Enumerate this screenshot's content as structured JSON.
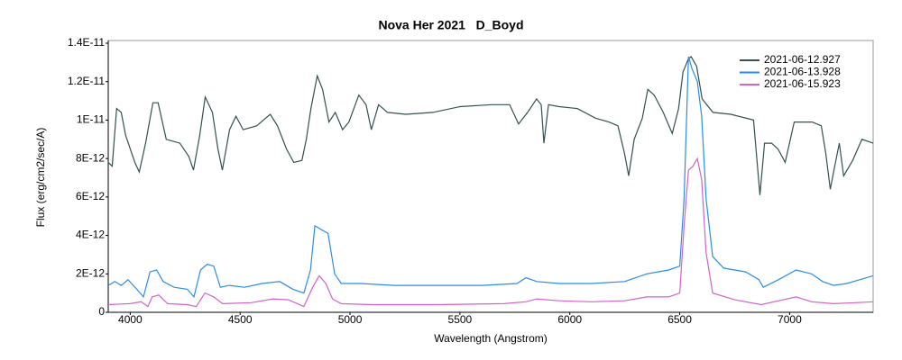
{
  "chart_data": {
    "type": "line",
    "title": "Nova Her 2021   D_Boyd",
    "x_label": "Wavelength (Angstrom)",
    "y_label": "Flux (erg/cm2/sec/A)",
    "xlim": [
      3900,
      7380
    ],
    "xticks": [
      4000,
      4500,
      5000,
      5500,
      6000,
      6500,
      7000
    ],
    "ylim": [
      0,
      1.4e-11
    ],
    "yticks": [
      0,
      {
        "value": 2e-12,
        "label": "2E-12"
      },
      {
        "value": 4e-12,
        "label": "4E-12"
      },
      {
        "value": 6e-12,
        "label": "6E-12"
      },
      {
        "value": 8e-12,
        "label": "8E-12"
      },
      {
        "value": 1e-11,
        "label": "1E-11"
      },
      {
        "value": 1.2e-11,
        "label": "1.2E-11"
      },
      {
        "value": 1.4e-11,
        "label": "1.4E-11"
      }
    ],
    "legend": "upper right",
    "series": [
      {
        "name": "2021-06-12.927",
        "color": "#34504f",
        "x": [
          3900,
          3918,
          3938,
          3959,
          3979,
          4021,
          4041,
          4070,
          4103,
          4127,
          4164,
          4226,
          4267,
          4288,
          4316,
          4341,
          4374,
          4399,
          4419,
          4452,
          4481,
          4514,
          4575,
          4637,
          4670,
          4711,
          4744,
          4781,
          4801,
          4822,
          4851,
          4875,
          4904,
          4933,
          4966,
          4995,
          5040,
          5073,
          5097,
          5130,
          5171,
          5254,
          5377,
          5500,
          5644,
          5726,
          5767,
          5808,
          5849,
          5870,
          5882,
          5903,
          5952,
          6034,
          6117,
          6178,
          6219,
          6248,
          6268,
          6293,
          6330,
          6355,
          6384,
          6425,
          6466,
          6495,
          6515,
          6540,
          6552,
          6577,
          6602,
          6651,
          6733,
          6836,
          6865,
          6886,
          6918,
          6947,
          6980,
          7021,
          7103,
          7144,
          7164,
          7185,
          7205,
          7226,
          7246,
          7287,
          7329,
          7380
        ],
        "values": [
          7.8e-12,
          7.6e-12,
          1.06e-11,
          1.04e-11,
          9.2e-12,
          7.8e-12,
          7.3e-12,
          8.8e-12,
          1.09e-11,
          1.09e-11,
          9e-12,
          8.8e-12,
          8.1e-12,
          7.4e-12,
          9.2e-12,
          1.12e-11,
          1.04e-11,
          8.5e-12,
          7.4e-12,
          9.5e-12,
          1.02e-11,
          9.5e-12,
          9.7e-12,
          1.03e-11,
          9.7e-12,
          8.5e-12,
          7.8e-12,
          7.9e-12,
          9e-12,
          1.06e-11,
          1.23e-11,
          1.16e-11,
          9.9e-12,
          1.04e-11,
          9.5e-12,
          9.9e-12,
          1.13e-11,
          1.08e-11,
          9.5e-12,
          1.08e-11,
          1.04e-11,
          1.03e-11,
          1.04e-11,
          1.07e-11,
          1.08e-11,
          1.08e-11,
          9.8e-12,
          1.04e-11,
          1.11e-11,
          1.08e-11,
          8.8e-12,
          1.08e-11,
          1.07e-11,
          1.06e-11,
          1.01e-11,
          9.9e-12,
          9.7e-12,
          8.3e-12,
          7.1e-12,
          9e-12,
          1.01e-11,
          1.16e-11,
          1.13e-11,
          1.04e-11,
          9.3e-12,
          1.06e-11,
          1.25e-11,
          1.32e-11,
          1.33e-11,
          1.28e-11,
          1.11e-11,
          1.04e-11,
          1.03e-11,
          1e-11,
          6.1e-12,
          8.8e-12,
          8.8e-12,
          8.5e-12,
          7.8e-12,
          9.9e-12,
          9.9e-12,
          9.7e-12,
          8.3e-12,
          6.4e-12,
          7.6e-12,
          8.8e-12,
          7.1e-12,
          7.9e-12,
          9e-12,
          8.8e-12
        ]
      },
      {
        "name": "2021-06-13.928",
        "color": "#2b8de6",
        "x": [
          3900,
          3930,
          3960,
          3990,
          4030,
          4060,
          4090,
          4120,
          4150,
          4200,
          4260,
          4290,
          4320,
          4350,
          4380,
          4410,
          4450,
          4520,
          4600,
          4680,
          4740,
          4790,
          4820,
          4840,
          4870,
          4900,
          4930,
          4960,
          5050,
          5200,
          5400,
          5600,
          5760,
          5800,
          5850,
          5950,
          6100,
          6250,
          6350,
          6450,
          6500,
          6520,
          6540,
          6555,
          6580,
          6600,
          6620,
          6650,
          6700,
          6800,
          6860,
          6880,
          6950,
          7030,
          7100,
          7150,
          7200,
          7260,
          7320,
          7380
        ],
        "values": [
          1.4e-12,
          1.6e-12,
          1.4e-12,
          1.7e-12,
          1.2e-12,
          8e-13,
          2.1e-12,
          2.2e-12,
          1.6e-12,
          1.3e-12,
          1.2e-12,
          8e-13,
          2.2e-12,
          2.5e-12,
          2.4e-12,
          1.3e-12,
          1.4e-12,
          1.3e-12,
          1.5e-12,
          1.6e-12,
          1.2e-12,
          1e-12,
          2.2e-12,
          4.5e-12,
          4.3e-12,
          4.1e-12,
          2e-12,
          1.5e-12,
          1.5e-12,
          1.4e-12,
          1.4e-12,
          1.4e-12,
          1.5e-12,
          1.8e-12,
          1.6e-12,
          1.5e-12,
          1.5e-12,
          1.6e-12,
          2e-12,
          2.2e-12,
          2.4e-12,
          5.9e-12,
          1.33e-11,
          1.27e-11,
          1.2e-11,
          1.02e-11,
          5.9e-12,
          2.9e-12,
          2.3e-12,
          2.1e-12,
          1.7e-12,
          1.3e-12,
          1.7e-12,
          2.2e-12,
          2e-12,
          1.6e-12,
          1.4e-12,
          1.5e-12,
          1.7e-12,
          1.9e-12
        ]
      },
      {
        "name": "2021-06-15.923",
        "color": "#d064c8",
        "x": [
          3900,
          4000,
          4050,
          4080,
          4100,
          4130,
          4170,
          4260,
          4300,
          4340,
          4380,
          4420,
          4550,
          4650,
          4720,
          4790,
          4830,
          4860,
          4890,
          4920,
          4960,
          5100,
          5400,
          5700,
          5800,
          5850,
          5950,
          6100,
          6250,
          6350,
          6450,
          6500,
          6520,
          6540,
          6560,
          6580,
          6600,
          6620,
          6650,
          6750,
          6870,
          6950,
          7030,
          7100,
          7200,
          7300,
          7380
        ],
        "values": [
          4e-13,
          4.5e-13,
          5.5e-13,
          3e-13,
          8e-13,
          9e-13,
          4.5e-13,
          4e-13,
          3e-13,
          1e-12,
          8e-13,
          4.5e-13,
          5e-13,
          7e-13,
          6.5e-13,
          3e-13,
          1.3e-12,
          1.9e-12,
          1.5e-12,
          7e-13,
          4.5e-13,
          4e-13,
          4e-13,
          4.5e-13,
          5.5e-13,
          7e-13,
          6e-13,
          5.5e-13,
          6e-13,
          8e-13,
          8e-13,
          1e-12,
          4.5e-12,
          7.4e-12,
          7.6e-12,
          8e-12,
          6.9e-12,
          3.1e-12,
          1e-12,
          6.5e-13,
          4e-13,
          6e-13,
          8e-13,
          5.5e-13,
          4.5e-13,
          5e-13,
          5.5e-13
        ]
      }
    ]
  }
}
